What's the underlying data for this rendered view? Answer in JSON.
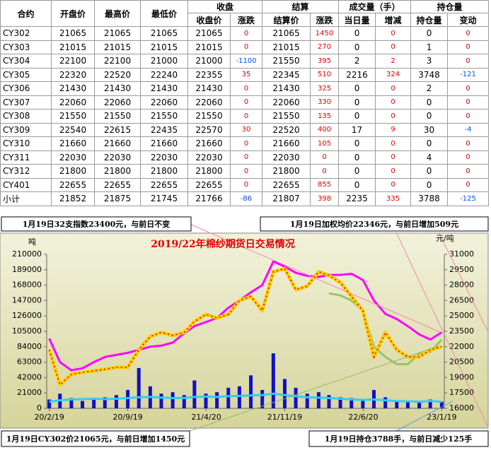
{
  "table": {
    "headers": [
      "合约",
      "开盘价",
      "最高价",
      "最低价"
    ],
    "groups": [
      {
        "label": "收盘",
        "columns": [
          "收盘价",
          "涨跌"
        ]
      },
      {
        "label": "结算",
        "columns": [
          "结算价",
          "涨跌"
        ]
      },
      {
        "label": "成交量（手）",
        "columns": [
          "当日量",
          "增减"
        ]
      },
      {
        "label": "持仓量",
        "columns": [
          "持仓量",
          "变动"
        ]
      }
    ],
    "rows": [
      [
        "CY302",
        21065,
        21065,
        21065,
        21065,
        0,
        21065,
        1450,
        0,
        0,
        0,
        0
      ],
      [
        "CY303",
        21015,
        21015,
        21015,
        21015,
        0,
        21015,
        270,
        0,
        0,
        1,
        0
      ],
      [
        "CY304",
        22100,
        22100,
        21000,
        21000,
        -1100,
        21550,
        395,
        2,
        2,
        3,
        0
      ],
      [
        "CY305",
        22320,
        22520,
        22240,
        22355,
        35,
        22345,
        510,
        2216,
        324,
        3748,
        -121
      ],
      [
        "CY306",
        21430,
        21430,
        21430,
        21430,
        0,
        21430,
        325,
        0,
        0,
        2,
        0
      ],
      [
        "CY307",
        22060,
        22060,
        22060,
        22060,
        0,
        22060,
        330,
        0,
        0,
        0,
        0
      ],
      [
        "CY308",
        21550,
        21550,
        21550,
        21550,
        0,
        21550,
        135,
        0,
        0,
        0,
        0
      ],
      [
        "CY309",
        22540,
        22615,
        22435,
        22570,
        30,
        22520,
        400,
        17,
        9,
        30,
        -4
      ],
      [
        "CY310",
        21660,
        21660,
        21660,
        21660,
        0,
        21660,
        105,
        0,
        0,
        0,
        0
      ],
      [
        "CY311",
        22030,
        22030,
        22030,
        22030,
        0,
        22030,
        0,
        0,
        0,
        4,
        0
      ],
      [
        "CY312",
        21800,
        21800,
        21800,
        21800,
        0,
        21800,
        0,
        0,
        0,
        0,
        0
      ],
      [
        "CY401",
        22655,
        22655,
        22655,
        22655,
        0,
        22655,
        855,
        0,
        0,
        0,
        0
      ],
      [
        "小计",
        21852,
        21875,
        21745,
        21766,
        -86,
        21807,
        398,
        2235,
        335,
        3788,
        -125
      ]
    ]
  },
  "chart_data": {
    "type": "line",
    "title": "2019/22年棉纱期货日交易情况",
    "y_unit": "吨",
    "y2_unit": "元/吨",
    "annotations": [
      "1月19日32支指数23400元，与前日不变",
      "1月19日加权均价22346元，与前日增加509元",
      "1月19日CY302价21065元，与前日增加1450元",
      "1月19日持仓3788手，与前日减少125手"
    ],
    "x": [
      "2020-02-19",
      "2020-03-19",
      "2020-04-19",
      "2020-05-19",
      "2020-06-19",
      "2020-07-19",
      "2020-08-19",
      "2020-09-19",
      "2020-10-19",
      "2020-11-19",
      "2020-12-19",
      "2021-01-19",
      "2021-02-19",
      "2021-03-19",
      "2021-04-19",
      "2021-05-19",
      "2021-06-19",
      "2021-07-19",
      "2021-08-19",
      "2021-09-19",
      "2021-10-19",
      "2021-11-19",
      "2021-12-19",
      "2022-01-19",
      "2022-02-19",
      "2022-03-19",
      "2022-04-19",
      "2022-05-19",
      "2022-06-19",
      "2022-07-19",
      "2022-08-19",
      "2022-09-19",
      "2022-10-19",
      "2022-11-19",
      "2022-12-19",
      "2023-01-19"
    ],
    "xlim": [
      "2020-02-12",
      "2023-01-26"
    ],
    "xticks": [
      {
        "value": "2020-02-19",
        "label": "20/2/19"
      },
      {
        "value": "2020-09-19",
        "label": "20/9/19"
      },
      {
        "value": "2021-04-20",
        "label": "21/4/20"
      },
      {
        "value": "2021-11-19",
        "label": "21/11/19"
      },
      {
        "value": "2022-06-20",
        "label": "22/6/20"
      },
      {
        "value": "2023-01-19",
        "label": "23/1/19"
      }
    ],
    "ylim": [
      0,
      210000
    ],
    "yticks": [
      0,
      21000,
      42000,
      63000,
      84000,
      105000,
      126000,
      147000,
      168000,
      189000,
      210000
    ],
    "y2lim": [
      16000,
      31000
    ],
    "y2ticks": [
      16000,
      17500,
      19000,
      20500,
      22000,
      23500,
      25000,
      26500,
      28000,
      29500,
      31000
    ],
    "series": [
      {
        "type": "bar",
        "color": "#1010c8",
        "values": [
          12000,
          20000,
          14000,
          10000,
          12000,
          15000,
          18000,
          25000,
          55000,
          30000,
          20000,
          22000,
          18000,
          38000,
          20000,
          22000,
          28000,
          30000,
          45000,
          25000,
          75000,
          40000,
          28000,
          20000,
          22000,
          18000,
          15000,
          14000,
          12000,
          25000,
          15000,
          10000,
          9000,
          8000,
          12000,
          9000
        ]
      },
      {
        "type": "line",
        "color": "#33ccee",
        "values": [
          9000,
          11000,
          12000,
          12500,
          13000,
          12500,
          13000,
          14000,
          15000,
          15500,
          14500,
          14000,
          14000,
          15500,
          16000,
          15500,
          16500,
          17000,
          17500,
          18000,
          20000,
          18000,
          16500,
          15000,
          14500,
          14000,
          13000,
          12000,
          11500,
          12000,
          11000,
          10000,
          9500,
          9000,
          10000,
          9000
        ]
      },
      {
        "type": "line",
        "axis": "y2",
        "color": "#ff00ff",
        "values": [
          22800,
          20500,
          19700,
          19900,
          20500,
          21000,
          21200,
          21400,
          21700,
          22000,
          22100,
          22400,
          23300,
          24000,
          24400,
          24800,
          25800,
          26500,
          27300,
          28000,
          30300,
          29800,
          29200,
          28900,
          28800,
          29000,
          29000,
          29100,
          28500,
          26500,
          25200,
          24700,
          24000,
          23200,
          22700,
          23400
        ]
      },
      {
        "type": "line",
        "axis": "y2",
        "color": "#99c466",
        "values": [
          null,
          null,
          null,
          null,
          null,
          null,
          null,
          null,
          null,
          null,
          null,
          null,
          null,
          null,
          null,
          null,
          null,
          null,
          null,
          null,
          null,
          null,
          null,
          null,
          null,
          27200,
          27000,
          26500,
          25500,
          22000,
          21000,
          20300,
          20300,
          21300,
          21500,
          22700
        ]
      },
      {
        "type": "line",
        "axis": "y2",
        "color": "#ffd000",
        "values": [
          21700,
          18300,
          19300,
          19500,
          19650,
          19800,
          20000,
          20000,
          21700,
          23000,
          23400,
          23100,
          23400,
          24450,
          25150,
          24800,
          25150,
          26500,
          26900,
          25500,
          29300,
          29600,
          27550,
          27900,
          29300,
          28950,
          28250,
          26900,
          25500,
          21000,
          23400,
          21700,
          21000,
          21000,
          21700,
          22000
        ]
      }
    ]
  }
}
